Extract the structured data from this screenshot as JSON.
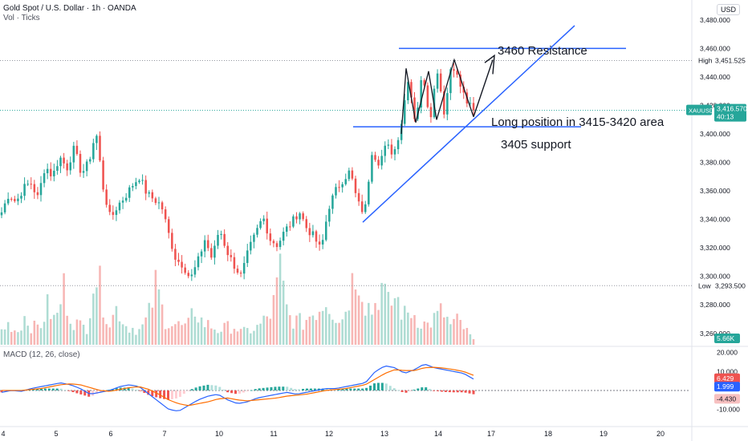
{
  "header": {
    "symbol_title": "Gold Spot / U.S. Dollar · 1h · OANDA",
    "volume_label": "Vol · Ticks",
    "currency": "USD"
  },
  "macd": {
    "label": "MACD (12, 26, close)",
    "axis_ticks": [
      "20.000",
      "10.000",
      "-10.000"
    ],
    "badges": [
      {
        "text": "6.429",
        "value": 6.429,
        "color": "#ef5350"
      },
      {
        "text": "1.999",
        "value": 1.999,
        "color": "#2962ff"
      },
      {
        "text": "-4.430",
        "value": -4.43,
        "color": "#f7c0c0"
      }
    ]
  },
  "annotations": {
    "resistance": "3460 Resistance",
    "long_position": "Long position in 3415-3420 area",
    "support": "3405 support"
  },
  "colors": {
    "up": "#26a69a",
    "down": "#ef5350",
    "vol_up": "#aedcd3",
    "vol_down": "#f7b6b4",
    "drawing": "#2962ff",
    "macd_line": "#2962ff",
    "signal_line": "#ff6d00"
  },
  "chart_data": {
    "type": "candlestick",
    "title": "Gold Spot / U.S. Dollar · 1h · OANDA",
    "x_ticks": [
      "4",
      "5",
      "6",
      "7",
      "10",
      "11",
      "12",
      "13",
      "14",
      "17",
      "18",
      "19",
      "20"
    ],
    "y_ticks": [
      "3,480.000",
      "3,460.000",
      "3,440.000",
      "3,420.000",
      "3,400.000",
      "3,380.000",
      "3,360.000",
      "3,340.000",
      "3,320.000",
      "3,300.000",
      "3,280.000",
      "3,260.000"
    ],
    "ylim": [
      3252,
      3494
    ],
    "price_waypoints": [
      3345,
      3358,
      3352,
      3362,
      3366,
      3355,
      3378,
      3370,
      3384,
      3376,
      3390,
      3372,
      3380,
      3402,
      3362,
      3340,
      3350,
      3356,
      3364,
      3370,
      3358,
      3354,
      3350,
      3330,
      3312,
      3308,
      3298,
      3310,
      3326,
      3312,
      3334,
      3318,
      3308,
      3300,
      3318,
      3330,
      3342,
      3326,
      3322,
      3332,
      3338,
      3346,
      3334,
      3328,
      3318,
      3348,
      3360,
      3368,
      3374,
      3352,
      3344,
      3388,
      3380,
      3392,
      3386,
      3406,
      3440,
      3408,
      3444,
      3410,
      3446,
      3414,
      3452,
      3436,
      3423,
      3416
    ],
    "last_price": {
      "label": "XAUUSD",
      "value": 3416.57,
      "text": "3,416.570",
      "countdown": "40:13"
    },
    "high": {
      "label": "High",
      "value": 3451.525,
      "text": "3,451.525"
    },
    "low": {
      "label": "Low",
      "value": 3293.5,
      "text": "3,293.500"
    },
    "volume_last": "5.66K",
    "volume_waypoints": [
      0.6,
      0.9,
      0.5,
      1.2,
      0.7,
      0.8,
      1.6,
      0.9,
      2.4,
      1.1,
      0.8,
      0.7,
      3.2,
      2.0,
      0.9,
      1.6,
      0.8,
      0.7,
      0.6,
      1.2,
      2.5,
      1.1,
      0.9,
      0.8,
      0.7,
      1.5,
      0.9,
      0.8,
      0.6,
      0.7,
      0.8,
      0.5,
      0.6,
      0.7,
      1.0,
      1.4,
      3.0,
      1.2,
      1.0,
      0.9,
      1.3,
      1.5,
      2.0,
      1.3,
      1.0,
      2.2,
      3.4,
      1.8,
      1.4,
      2.5,
      1.6,
      2.0,
      1.2,
      1.4,
      1.0,
      0.8,
      1.1,
      1.4,
      0.8,
      1.0,
      0.6,
      0.2
    ],
    "macd_waypoints": [
      -1,
      0,
      -0.5,
      1,
      2,
      3,
      4,
      3,
      1,
      -2,
      -1,
      0,
      2,
      3,
      2,
      -2,
      -6,
      -10,
      -11,
      -8,
      -5,
      -3,
      -2,
      -5,
      -7,
      -6,
      -4,
      -3,
      -2,
      -1,
      -2,
      -1,
      0,
      1,
      1,
      2,
      3,
      4,
      10,
      13,
      12,
      9,
      11,
      14,
      12,
      11,
      10,
      9,
      6
    ],
    "signal_waypoints": [
      0,
      0,
      0,
      0.5,
      1,
      2,
      3,
      3.5,
      3,
      1.5,
      0,
      -0.5,
      0.5,
      1.5,
      2,
      0.5,
      -2,
      -5,
      -7,
      -8,
      -7,
      -6,
      -4.5,
      -4,
      -5,
      -5.5,
      -5,
      -4.5,
      -4,
      -3,
      -2.5,
      -2,
      -1,
      0,
      0.5,
      1,
      2,
      3,
      6,
      9,
      11,
      10.5,
      10.5,
      12,
      12.2,
      11.8,
      11,
      10,
      8
    ],
    "macd_ylim": [
      -14,
      22
    ]
  }
}
